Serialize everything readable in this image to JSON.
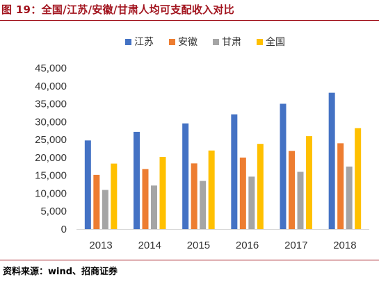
{
  "figure": {
    "title": "图 19：全国/江苏/安徽/甘肃人均可支配收入对比",
    "source": "资料来源：wind、招商证券"
  },
  "chart_data": {
    "type": "bar",
    "categories": [
      "2013",
      "2014",
      "2015",
      "2016",
      "2017",
      "2018"
    ],
    "series": [
      {
        "name": "江苏",
        "color": "#4472c4",
        "values": [
          24776,
          27173,
          29539,
          32070,
          35024,
          38096
        ]
      },
      {
        "name": "安徽",
        "color": "#ed7d31",
        "values": [
          15154,
          16795,
          18363,
          19998,
          21863,
          23984
        ]
      },
      {
        "name": "甘肃",
        "color": "#a5a5a5",
        "values": [
          10954,
          12185,
          13467,
          14670,
          16011,
          17488
        ]
      },
      {
        "name": "全国",
        "color": "#ffc000",
        "values": [
          18311,
          20167,
          21966,
          23821,
          25974,
          28228
        ]
      }
    ],
    "ylim": [
      0,
      45000
    ],
    "yticks": [
      "0",
      "5,000",
      "10,000",
      "15,000",
      "20,000",
      "25,000",
      "30,000",
      "35,000",
      "40,000",
      "45,000"
    ],
    "legend_position": "top",
    "grid": false
  }
}
